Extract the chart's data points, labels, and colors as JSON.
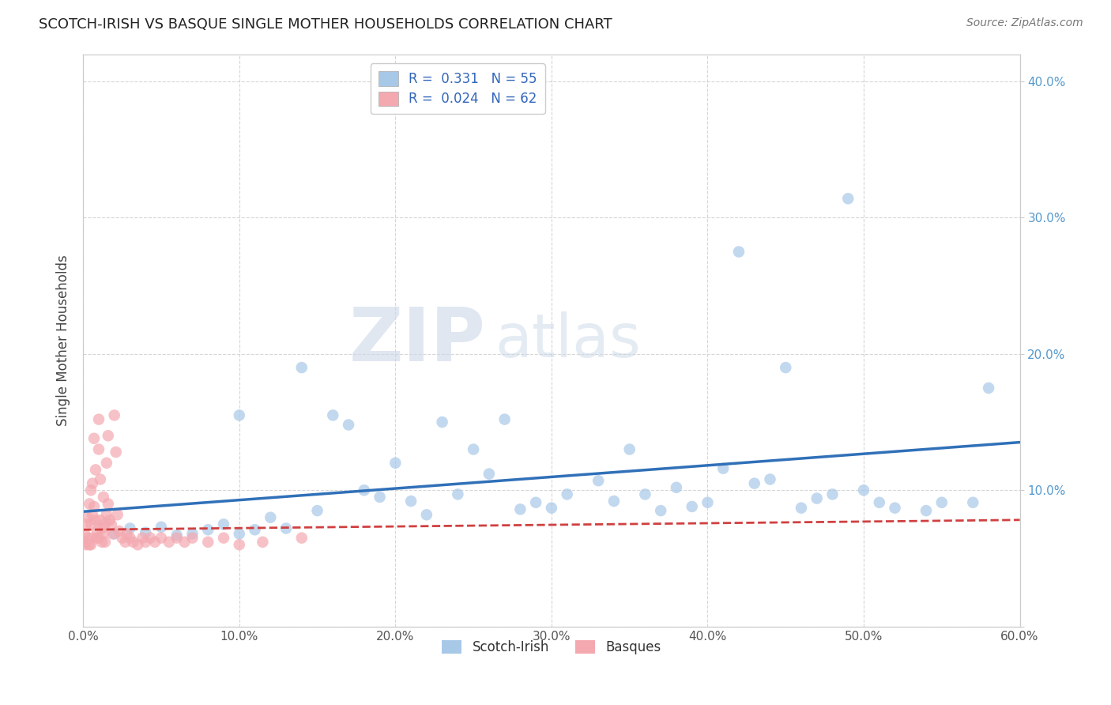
{
  "title": "SCOTCH-IRISH VS BASQUE SINGLE MOTHER HOUSEHOLDS CORRELATION CHART",
  "source": "Source: ZipAtlas.com",
  "ylabel_label": "Single Mother Households",
  "xlim": [
    0.0,
    0.6
  ],
  "ylim": [
    0.0,
    0.42
  ],
  "xticks": [
    0.0,
    0.1,
    0.2,
    0.3,
    0.4,
    0.5,
    0.6
  ],
  "yticks": [
    0.0,
    0.1,
    0.2,
    0.3,
    0.4
  ],
  "xticklabels": [
    "0.0%",
    "10.0%",
    "20.0%",
    "30.0%",
    "40.0%",
    "50.0%",
    "60.0%"
  ],
  "yticklabels": [
    "",
    "10.0%",
    "20.0%",
    "30.0%",
    "40.0%"
  ],
  "grid_color": "#cccccc",
  "background_color": "#ffffff",
  "scotch_irish_color": "#a8c8e8",
  "basque_color": "#f4a8b0",
  "scotch_irish_R": 0.331,
  "scotch_irish_N": 55,
  "basque_R": 0.024,
  "basque_N": 62,
  "scotch_irish_line_color": "#3070b8",
  "basque_line_color": "#d04040",
  "watermark_zip": "ZIP",
  "watermark_atlas": "atlas",
  "scotch_irish_x": [
    0.02,
    0.03,
    0.04,
    0.05,
    0.06,
    0.07,
    0.08,
    0.09,
    0.1,
    0.1,
    0.11,
    0.12,
    0.13,
    0.14,
    0.15,
    0.16,
    0.17,
    0.18,
    0.19,
    0.2,
    0.21,
    0.22,
    0.23,
    0.24,
    0.25,
    0.26,
    0.27,
    0.28,
    0.29,
    0.3,
    0.31,
    0.33,
    0.34,
    0.35,
    0.36,
    0.37,
    0.38,
    0.39,
    0.4,
    0.41,
    0.42,
    0.43,
    0.44,
    0.45,
    0.46,
    0.47,
    0.48,
    0.49,
    0.5,
    0.51,
    0.52,
    0.54,
    0.55,
    0.57,
    0.58
  ],
  "scotch_irish_y": [
    0.068,
    0.072,
    0.069,
    0.073,
    0.067,
    0.068,
    0.071,
    0.075,
    0.068,
    0.155,
    0.071,
    0.08,
    0.072,
    0.19,
    0.085,
    0.155,
    0.148,
    0.1,
    0.095,
    0.12,
    0.092,
    0.082,
    0.15,
    0.097,
    0.13,
    0.112,
    0.152,
    0.086,
    0.091,
    0.087,
    0.097,
    0.107,
    0.092,
    0.13,
    0.097,
    0.085,
    0.102,
    0.088,
    0.091,
    0.116,
    0.275,
    0.105,
    0.108,
    0.19,
    0.087,
    0.094,
    0.097,
    0.314,
    0.1,
    0.091,
    0.087,
    0.085,
    0.091,
    0.091,
    0.175
  ],
  "basque_x": [
    0.001,
    0.001,
    0.002,
    0.002,
    0.003,
    0.003,
    0.004,
    0.004,
    0.005,
    0.005,
    0.005,
    0.006,
    0.006,
    0.006,
    0.007,
    0.007,
    0.008,
    0.008,
    0.009,
    0.009,
    0.01,
    0.01,
    0.01,
    0.011,
    0.011,
    0.012,
    0.012,
    0.013,
    0.013,
    0.014,
    0.014,
    0.015,
    0.015,
    0.016,
    0.016,
    0.017,
    0.018,
    0.019,
    0.02,
    0.021,
    0.022,
    0.023,
    0.025,
    0.027,
    0.028,
    0.03,
    0.032,
    0.035,
    0.038,
    0.04,
    0.043,
    0.046,
    0.05,
    0.055,
    0.06,
    0.065,
    0.07,
    0.08,
    0.09,
    0.1,
    0.115,
    0.14
  ],
  "basque_y": [
    0.068,
    0.062,
    0.075,
    0.06,
    0.08,
    0.065,
    0.09,
    0.06,
    0.1,
    0.075,
    0.06,
    0.105,
    0.082,
    0.065,
    0.138,
    0.088,
    0.115,
    0.078,
    0.065,
    0.07,
    0.152,
    0.13,
    0.065,
    0.108,
    0.078,
    0.072,
    0.062,
    0.095,
    0.068,
    0.062,
    0.075,
    0.12,
    0.082,
    0.14,
    0.09,
    0.078,
    0.075,
    0.068,
    0.155,
    0.128,
    0.082,
    0.07,
    0.065,
    0.062,
    0.068,
    0.065,
    0.062,
    0.06,
    0.065,
    0.062,
    0.065,
    0.062,
    0.065,
    0.062,
    0.065,
    0.062,
    0.065,
    0.062,
    0.065,
    0.06,
    0.062,
    0.065
  ]
}
